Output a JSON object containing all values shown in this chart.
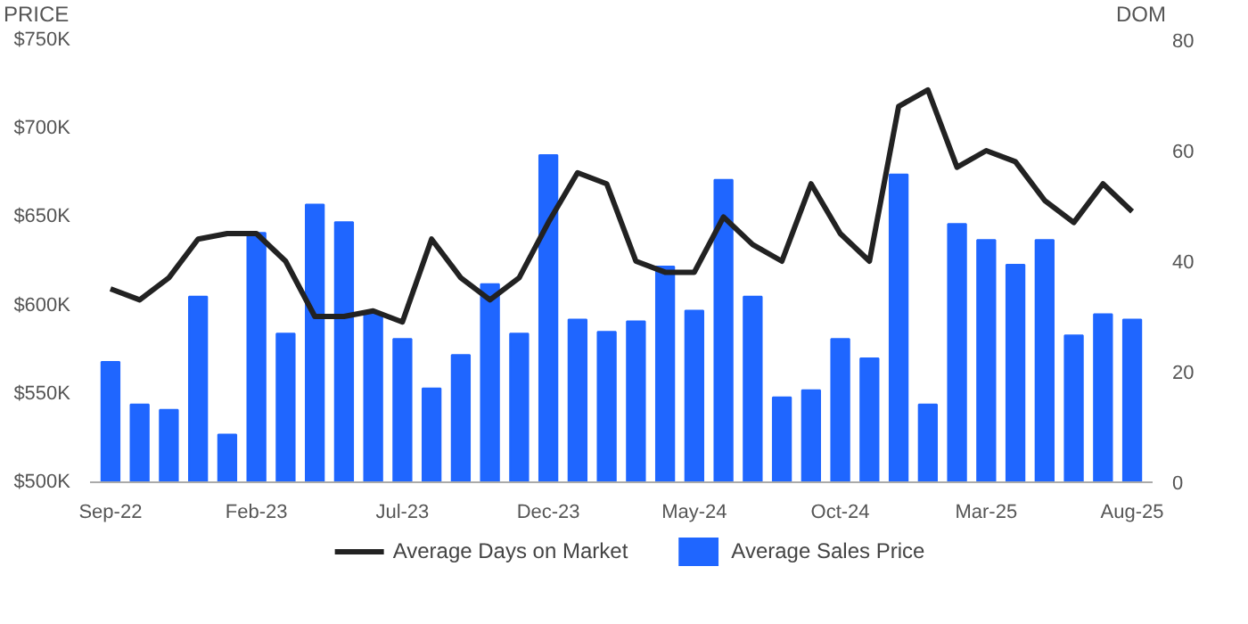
{
  "chart_data": {
    "type": "bar",
    "categories": [
      "Sep-22",
      null,
      null,
      null,
      null,
      "Feb-23",
      null,
      null,
      null,
      null,
      "Jul-23",
      null,
      null,
      null,
      null,
      "Dec-23",
      null,
      null,
      null,
      null,
      "May-24",
      null,
      null,
      null,
      null,
      "Oct-24",
      null,
      null,
      null,
      null,
      "Mar-25",
      null,
      null,
      null,
      null,
      "Aug-25"
    ],
    "ylabel": "PRICE",
    "y2label": "DOM",
    "ylim": [
      500,
      750
    ],
    "yticks": [
      {
        "value": 500,
        "label": "$500K"
      },
      {
        "value": 550,
        "label": "$550K"
      },
      {
        "value": 600,
        "label": "$600K"
      },
      {
        "value": 650,
        "label": "$650K"
      },
      {
        "value": 700,
        "label": "$700K"
      },
      {
        "value": 750,
        "label": "$750K"
      }
    ],
    "y2lim": [
      0,
      80
    ],
    "y2ticks": [
      0,
      20,
      40,
      60,
      80
    ],
    "series": [
      {
        "name": "Average Days on Market",
        "type": "line",
        "axis": "y2",
        "color": "#222222",
        "values": [
          35,
          33,
          37,
          44,
          45,
          45,
          40,
          30,
          30,
          31,
          29,
          44,
          37,
          33,
          37,
          47,
          56,
          54,
          40,
          38,
          38,
          48,
          43,
          40,
          54,
          45,
          40,
          68,
          71,
          57,
          60,
          58,
          51,
          47,
          54,
          49
        ]
      },
      {
        "name": "Average Sales Price",
        "color": "#1f66ff",
        "values": [
          568,
          544,
          541,
          605,
          527,
          641,
          584,
          657,
          647,
          595,
          581,
          553,
          572,
          612,
          584,
          685,
          592,
          585,
          591,
          622,
          597,
          671,
          605,
          548,
          552,
          581,
          570,
          674,
          544,
          646,
          637,
          623,
          637,
          583,
          595,
          592
        ]
      }
    ],
    "grid": false,
    "legend": "bottom",
    "line_style": "solid",
    "marker": "none"
  }
}
